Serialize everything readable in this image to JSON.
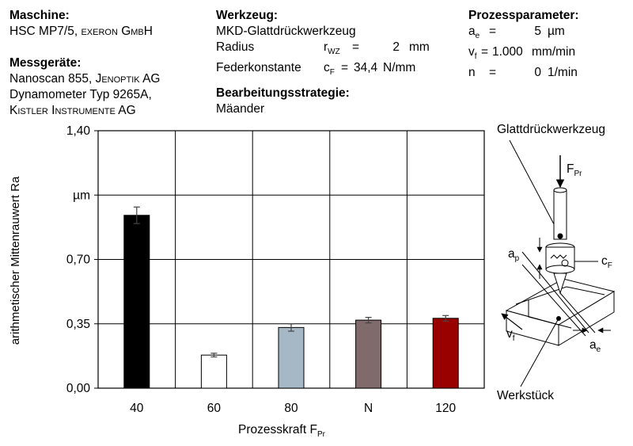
{
  "info": {
    "maschine_label": "Maschine:",
    "maschine_value": "HSC MP7/5, ",
    "maschine_brand": "exeron GmbH",
    "mess_label": "Messgeräte:",
    "mess_line1_prefix": "Nanoscan 855, ",
    "mess_line1_brand": "Jenoptik AG",
    "mess_line2": "Dynamometer Typ 9265A,",
    "mess_line3_brand": "Kistler Instrumente AG",
    "werkzeug_label": "Werkzeug:",
    "werkzeug_value": "MKD-Glattdrückwerkzeug",
    "radius_label": "Radius",
    "radius_symbol": "r",
    "radius_sub": "WZ",
    "radius_eq": "=",
    "radius_value": "2",
    "radius_unit": "mm",
    "feder_label": "Federkonstante",
    "feder_symbol": "c",
    "feder_sub": "F",
    "feder_eq": "=",
    "feder_value": "34,4",
    "feder_unit": "N/mm",
    "strategie_label": "Bearbeitungsstrategie:",
    "strategie_value": "Mäander",
    "prozess_label": "Prozessparameter:",
    "ae_symbol": "a",
    "ae_sub": "e",
    "ae_eq": "=",
    "ae_value": "5",
    "ae_unit": "µm",
    "vf_symbol": "v",
    "vf_sub": "f",
    "vf_eq": "=",
    "vf_value": "1.000",
    "vf_unit": "mm/min",
    "n_symbol": "n",
    "n_eq": "=",
    "n_value": "0",
    "n_unit": "1/min"
  },
  "chart_data": {
    "type": "bar",
    "categories": [
      "40",
      "60",
      "80",
      "N",
      "120"
    ],
    "values": [
      0.94,
      0.18,
      0.33,
      0.37,
      0.38
    ],
    "errors": [
      0.045,
      0.01,
      0.02,
      0.015,
      0.015
    ],
    "colors": [
      "#000000",
      "#ffffff",
      "#a6b8c6",
      "#7f6b6b",
      "#990000"
    ],
    "xlabel": "Prozesskraft F",
    "xlabel_sub": "Pr",
    "ylabel": "arithmetischer Mittenrauwert Ra",
    "ylim": [
      0,
      1.4
    ],
    "yticks": [
      "0,00",
      "0,35",
      "0,70",
      "µm",
      "1,40"
    ],
    "ytick_values": [
      0,
      0.35,
      0.7,
      1.05,
      1.4
    ],
    "grid": true
  },
  "diagram": {
    "tool_label": "Glattdrückwerkzeug",
    "force_symbol": "F",
    "force_sub": "Pr",
    "ap_symbol": "a",
    "ap_sub": "p",
    "cf_symbol": "c",
    "cf_sub": "F",
    "vf_symbol": "v",
    "vf_sub": "f",
    "ae_symbol": "a",
    "ae_sub": "e",
    "workpiece_label": "Werkstück"
  }
}
